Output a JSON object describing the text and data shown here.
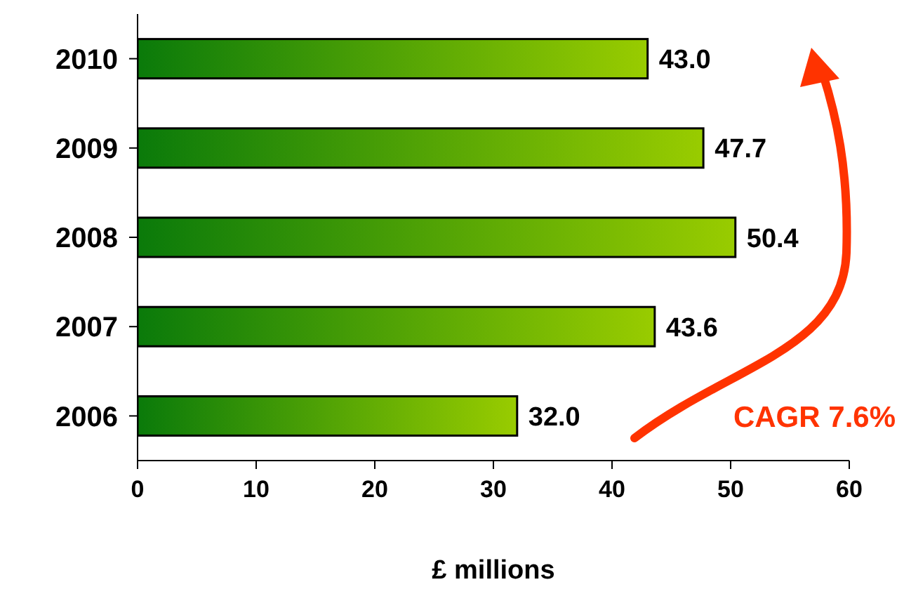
{
  "chart_data": {
    "type": "bar",
    "orientation": "horizontal",
    "categories": [
      "2010",
      "2009",
      "2008",
      "2007",
      "2006"
    ],
    "values": [
      43.0,
      47.7,
      50.4,
      43.6,
      32.0
    ],
    "value_labels": [
      "43.0",
      "47.7",
      "50.4",
      "43.6",
      "32.0"
    ],
    "color": "#99cc00",
    "xlim": [
      0,
      60
    ],
    "xticks": [
      0,
      10,
      20,
      30,
      40,
      50,
      60
    ],
    "xlabel": "£ millions",
    "annotations": [
      "CAGR 7.6%"
    ]
  }
}
